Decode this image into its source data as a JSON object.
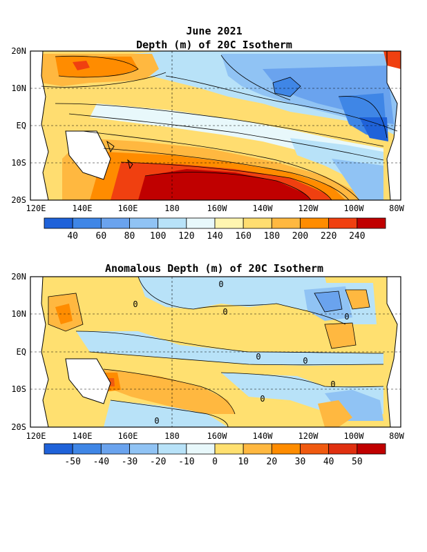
{
  "figure": {
    "title": "June 2021",
    "colors": {
      "land": "#ffffff",
      "coast": "#000000",
      "frame": "#000000"
    }
  },
  "panels": [
    {
      "id": "depth",
      "title": "Depth (m) of 20C Isotherm",
      "lat_ticks": [
        "20N",
        "10N",
        "EQ",
        "10S",
        "20S"
      ],
      "lon_ticks": [
        "120E",
        "140E",
        "160E",
        "180",
        "160W",
        "140W",
        "120W",
        "100W",
        "80W"
      ],
      "colorbar": {
        "labels": [
          "40",
          "60",
          "80",
          "100",
          "120",
          "140",
          "160",
          "180",
          "200",
          "220",
          "240"
        ],
        "colors": [
          "#1f62d9",
          "#3f86e6",
          "#6aa3ee",
          "#90c3f4",
          "#b8e2f8",
          "#e8f8fb",
          "#fff5b0",
          "#ffdd70",
          "#ffb840",
          "#ff8c00",
          "#f04010",
          "#c00000"
        ]
      }
    },
    {
      "id": "anomaly",
      "title": "Anomalous Depth (m) of 20C Isotherm",
      "lat_ticks": [
        "20N",
        "10N",
        "EQ",
        "10S",
        "20S"
      ],
      "lon_ticks": [
        "120E",
        "140E",
        "160E",
        "180",
        "160W",
        "140W",
        "120W",
        "100W",
        "80W"
      ],
      "contour_label": "0",
      "colorbar": {
        "labels": [
          "-50",
          "-40",
          "-30",
          "-20",
          "-10",
          "0",
          "10",
          "20",
          "30",
          "40",
          "50"
        ],
        "colors": [
          "#1f62d9",
          "#3f86e6",
          "#6aa3ee",
          "#90c3f4",
          "#b8e2f8",
          "#e8f8fb",
          "#ffe070",
          "#ffb840",
          "#ff8c00",
          "#f05a10",
          "#e03010",
          "#c00000"
        ]
      }
    }
  ]
}
